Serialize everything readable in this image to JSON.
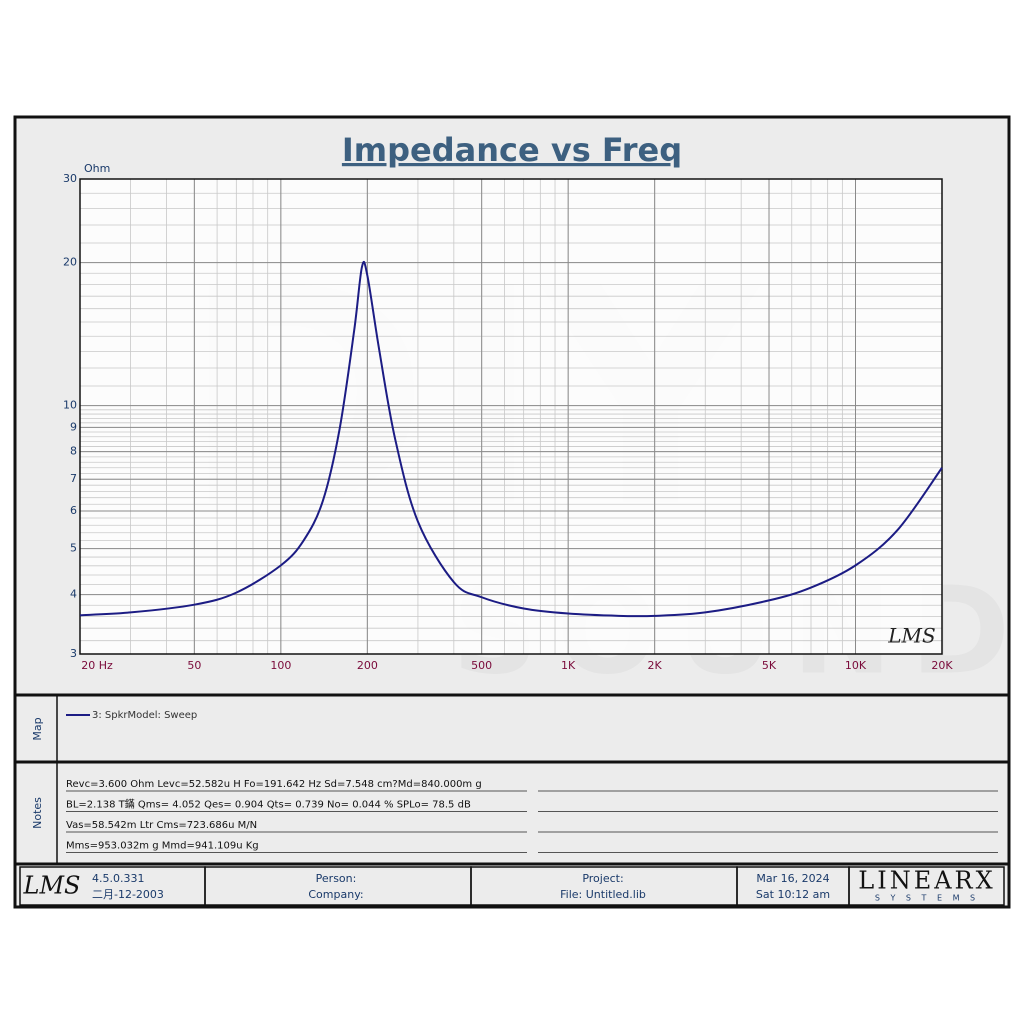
{
  "chart_data": {
    "type": "line",
    "title": "Impedance vs Freq",
    "y_label": "Ohm",
    "logo": "LMS",
    "watermark": [
      "DIY",
      "SOUND"
    ],
    "xscale": "log",
    "yscale": "log",
    "grid": true,
    "minor_grid": true,
    "xlim": [
      20,
      20000
    ],
    "ylim": [
      3,
      30
    ],
    "xticks": [
      {
        "value": 20,
        "label": "20  Hz"
      },
      50,
      100,
      200,
      500,
      {
        "value": 1000,
        "label": "1K"
      },
      {
        "value": 2000,
        "label": "2K"
      },
      {
        "value": 5000,
        "label": "5K"
      },
      {
        "value": 10000,
        "label": "10K"
      },
      {
        "value": 20000,
        "label": "20K"
      }
    ],
    "yticks": [
      3,
      4,
      5,
      6,
      7,
      8,
      9,
      10,
      20,
      30
    ],
    "x": [
      20,
      30,
      50,
      70,
      100,
      120,
      140,
      160,
      180,
      191.6,
      200,
      220,
      250,
      300,
      400,
      500,
      700,
      1000,
      1500,
      2000,
      3000,
      5000,
      7000,
      10000,
      14000,
      20000
    ],
    "series": [
      {
        "name": "3: SpkrModel: Sweep",
        "color": "#1c1c84",
        "values": [
          3.62,
          3.67,
          3.81,
          4.04,
          4.61,
          5.2,
          6.3,
          8.9,
          14.4,
          19.6,
          18.8,
          13.1,
          8.5,
          5.7,
          4.25,
          3.95,
          3.74,
          3.65,
          3.61,
          3.61,
          3.67,
          3.89,
          4.14,
          4.61,
          5.47,
          7.4
        ]
      }
    ]
  },
  "map": {
    "label": "Map"
  },
  "notes": {
    "label": "Notes",
    "lines": [
      "Revc=3.600 Ohm  Levc=52.582u H  Fo=191.642 Hz  Sd=7.548 cm?Md=840.000m g",
      "BL=2.138 T鏋  Qms= 4.052  Qes= 0.904  Qts= 0.739  No= 0.044 %  SPLo= 78.5 dB",
      "Vas=58.542m Ltr  Cms=723.686u M/N",
      "Mms=953.032m g  Mmd=941.109u Kg"
    ]
  },
  "footer": {
    "logo": "LMS",
    "version": "4.5.0.331",
    "build_date": "二月-12-2003",
    "person": "Person:",
    "company": "Company:",
    "project": "Project:",
    "file": "File: Untitled.lib",
    "date": "Mar 16, 2024",
    "time": "Sat 10:12 am",
    "brand": "LINEARX",
    "brand_sub": "S Y S T E M S"
  }
}
